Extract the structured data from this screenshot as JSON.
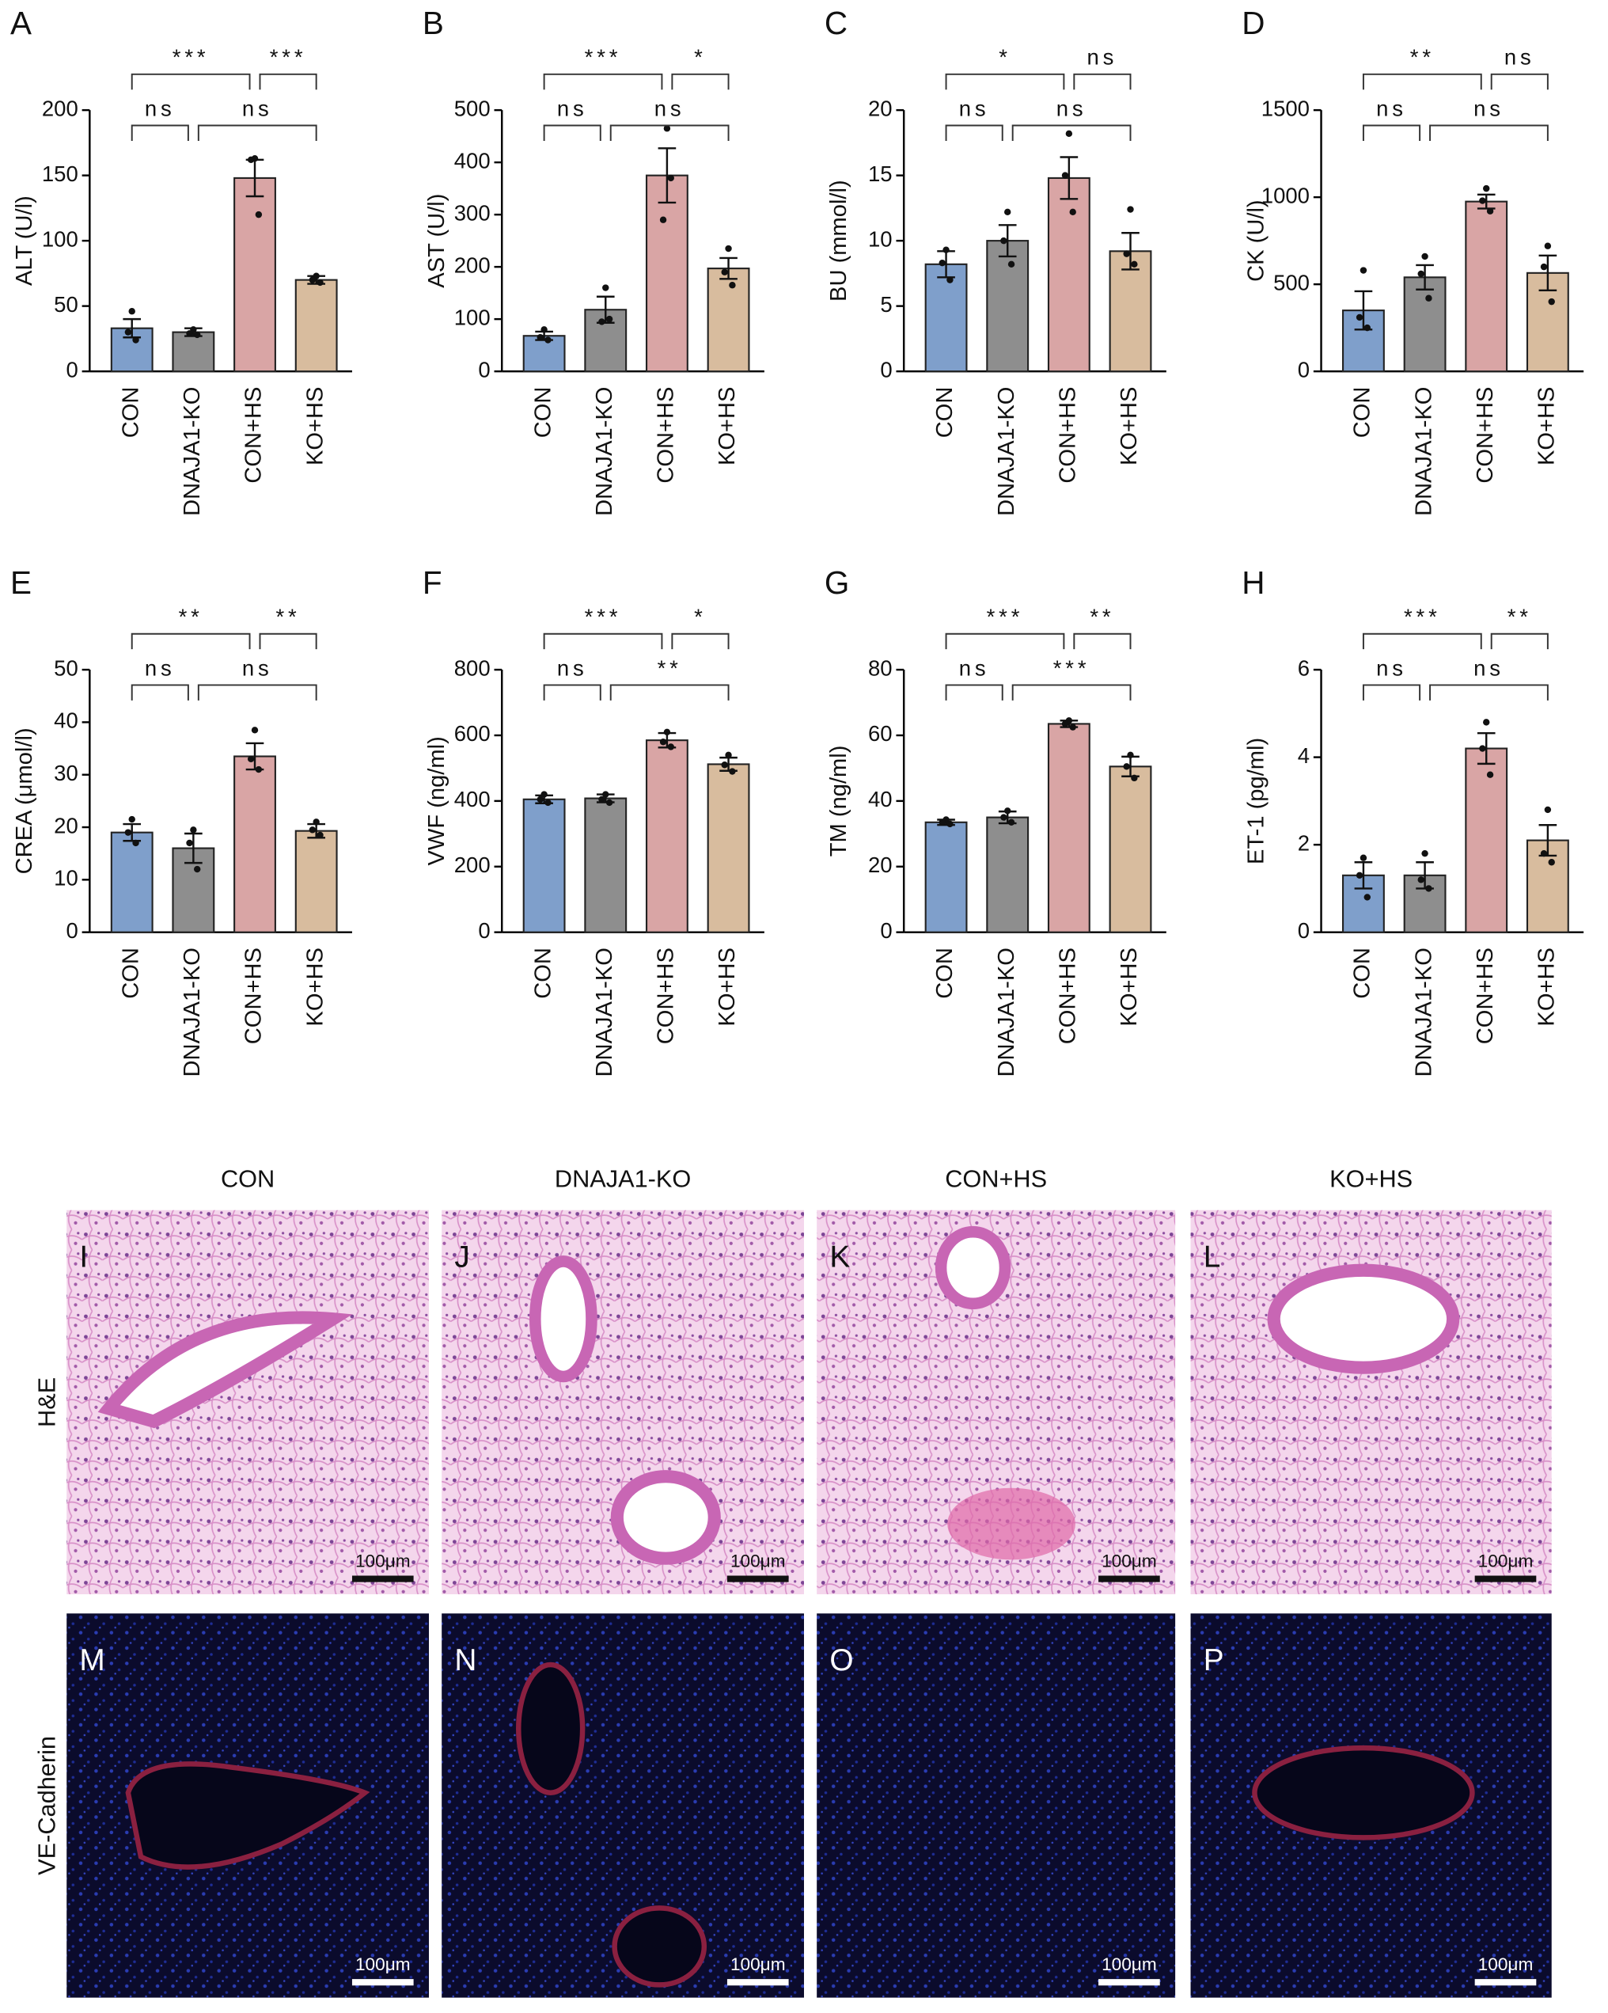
{
  "chart_data": [
    {
      "type": "bar",
      "panel": "A",
      "ylabel": "ALT (U/l)",
      "categories": [
        "CON",
        "DNAJA1-KO",
        "CON+HS",
        "KO+HS"
      ],
      "colors": [
        "#7f9fcb",
        "#8e8e8e",
        "#d9a5a5",
        "#d8bc9e"
      ],
      "values": [
        33,
        30,
        148,
        70
      ],
      "errors": [
        7,
        3,
        14,
        3
      ],
      "points": [
        [
          46,
          30,
          24
        ],
        [
          32,
          29,
          28
        ],
        [
          163,
          162,
          120
        ],
        [
          73,
          70,
          68
        ]
      ],
      "ylim": [
        0,
        200
      ],
      "yticks": [
        0,
        50,
        100,
        150,
        200
      ],
      "significance": [
        {
          "pair": [
            0,
            2
          ],
          "level": 1,
          "label": "***"
        },
        {
          "pair": [
            2,
            3
          ],
          "level": 1,
          "label": "***"
        },
        {
          "pair": [
            0,
            1
          ],
          "level": 0,
          "label": "ns"
        },
        {
          "pair": [
            1,
            3
          ],
          "level": 0,
          "label": "ns"
        }
      ]
    },
    {
      "type": "bar",
      "panel": "B",
      "ylabel": "AST (U/l)",
      "categories": [
        "CON",
        "DNAJA1-KO",
        "CON+HS",
        "KO+HS"
      ],
      "colors": [
        "#7f9fcb",
        "#8e8e8e",
        "#d9a5a5",
        "#d8bc9e"
      ],
      "values": [
        68,
        118,
        375,
        197
      ],
      "errors": [
        8,
        25,
        52,
        20
      ],
      "points": [
        [
          80,
          65,
          60
        ],
        [
          160,
          95,
          100
        ],
        [
          465,
          290,
          370
        ],
        [
          235,
          190,
          165
        ]
      ],
      "ylim": [
        0,
        500
      ],
      "yticks": [
        0,
        100,
        200,
        300,
        400,
        500
      ],
      "significance": [
        {
          "pair": [
            0,
            2
          ],
          "level": 1,
          "label": "***"
        },
        {
          "pair": [
            2,
            3
          ],
          "level": 1,
          "label": "*"
        },
        {
          "pair": [
            0,
            1
          ],
          "level": 0,
          "label": "ns"
        },
        {
          "pair": [
            1,
            3
          ],
          "level": 0,
          "label": "ns"
        }
      ]
    },
    {
      "type": "bar",
      "panel": "C",
      "ylabel": "BU (mmol/l)",
      "categories": [
        "CON",
        "DNAJA1-KO",
        "CON+HS",
        "KO+HS"
      ],
      "colors": [
        "#7f9fcb",
        "#8e8e8e",
        "#d9a5a5",
        "#d8bc9e"
      ],
      "values": [
        8.2,
        10,
        14.8,
        9.2
      ],
      "errors": [
        1,
        1.2,
        1.6,
        1.4
      ],
      "points": [
        [
          9.3,
          8.3,
          7
        ],
        [
          12.2,
          10,
          8.2
        ],
        [
          18.2,
          15,
          12.2
        ],
        [
          12.4,
          9,
          8.2
        ]
      ],
      "ylim": [
        0,
        20
      ],
      "yticks": [
        0,
        5,
        10,
        15,
        20
      ],
      "significance": [
        {
          "pair": [
            0,
            2
          ],
          "level": 1,
          "label": "*"
        },
        {
          "pair": [
            2,
            3
          ],
          "level": 1,
          "label": "ns"
        },
        {
          "pair": [
            0,
            1
          ],
          "level": 0,
          "label": "ns"
        },
        {
          "pair": [
            1,
            3
          ],
          "level": 0,
          "label": "ns"
        }
      ]
    },
    {
      "type": "bar",
      "panel": "D",
      "ylabel": "CK (U/l)",
      "categories": [
        "CON",
        "DNAJA1-KO",
        "CON+HS",
        "KO+HS"
      ],
      "colors": [
        "#7f9fcb",
        "#8e8e8e",
        "#d9a5a5",
        "#d8bc9e"
      ],
      "values": [
        350,
        540,
        975,
        565
      ],
      "errors": [
        110,
        70,
        40,
        100
      ],
      "points": [
        [
          580,
          310,
          250
        ],
        [
          660,
          560,
          420
        ],
        [
          1050,
          980,
          920
        ],
        [
          720,
          600,
          400
        ]
      ],
      "ylim": [
        0,
        1500
      ],
      "yticks": [
        0,
        500,
        1000,
        1500
      ],
      "significance": [
        {
          "pair": [
            0,
            2
          ],
          "level": 1,
          "label": "**"
        },
        {
          "pair": [
            2,
            3
          ],
          "level": 1,
          "label": "ns"
        },
        {
          "pair": [
            0,
            1
          ],
          "level": 0,
          "label": "ns"
        },
        {
          "pair": [
            1,
            3
          ],
          "level": 0,
          "label": "ns"
        }
      ]
    },
    {
      "type": "bar",
      "panel": "E",
      "ylabel": "CREA (μmol/l)",
      "categories": [
        "CON",
        "DNAJA1-KO",
        "CON+HS",
        "KO+HS"
      ],
      "colors": [
        "#7f9fcb",
        "#8e8e8e",
        "#d9a5a5",
        "#d8bc9e"
      ],
      "values": [
        19,
        16,
        33.5,
        19.3
      ],
      "errors": [
        1.6,
        2.8,
        2.5,
        1.3
      ],
      "points": [
        [
          21.5,
          19,
          17
        ],
        [
          19.5,
          17,
          12
        ],
        [
          38.5,
          33,
          31
        ],
        [
          21,
          19.5,
          18.5
        ]
      ],
      "ylim": [
        0,
        50
      ],
      "yticks": [
        0,
        10,
        20,
        30,
        40,
        50
      ],
      "significance": [
        {
          "pair": [
            0,
            2
          ],
          "level": 1,
          "label": "**"
        },
        {
          "pair": [
            2,
            3
          ],
          "level": 1,
          "label": "**"
        },
        {
          "pair": [
            0,
            1
          ],
          "level": 0,
          "label": "ns"
        },
        {
          "pair": [
            1,
            3
          ],
          "level": 0,
          "label": "ns"
        }
      ]
    },
    {
      "type": "bar",
      "panel": "F",
      "ylabel": "VWF (ng/ml)",
      "categories": [
        "CON",
        "DNAJA1-KO",
        "CON+HS",
        "KO+HS"
      ],
      "colors": [
        "#7f9fcb",
        "#8e8e8e",
        "#d9a5a5",
        "#d8bc9e"
      ],
      "values": [
        405,
        408,
        585,
        512
      ],
      "errors": [
        12,
        12,
        22,
        20
      ],
      "points": [
        [
          420,
          405,
          395
        ],
        [
          420,
          405,
          395
        ],
        [
          610,
          580,
          565
        ],
        [
          540,
          510,
          490
        ]
      ],
      "ylim": [
        0,
        800
      ],
      "yticks": [
        0,
        200,
        400,
        600,
        800
      ],
      "significance": [
        {
          "pair": [
            0,
            2
          ],
          "level": 1,
          "label": "***"
        },
        {
          "pair": [
            2,
            3
          ],
          "level": 1,
          "label": "*"
        },
        {
          "pair": [
            0,
            1
          ],
          "level": 0,
          "label": "ns"
        },
        {
          "pair": [
            1,
            3
          ],
          "level": 0,
          "label": "**"
        }
      ]
    },
    {
      "type": "bar",
      "panel": "G",
      "ylabel": "TM (ng/ml)",
      "categories": [
        "CON",
        "DNAJA1-KO",
        "CON+HS",
        "KO+HS"
      ],
      "colors": [
        "#7f9fcb",
        "#8e8e8e",
        "#d9a5a5",
        "#d8bc9e"
      ],
      "values": [
        33.5,
        35,
        63.5,
        50.5
      ],
      "errors": [
        0.8,
        1.8,
        1,
        3
      ],
      "points": [
        [
          34.3,
          33.5,
          33
        ],
        [
          37,
          35,
          33.5
        ],
        [
          64.5,
          63.5,
          62.5
        ],
        [
          54,
          50.5,
          47
        ]
      ],
      "ylim": [
        0,
        80
      ],
      "yticks": [
        0,
        20,
        40,
        60,
        80
      ],
      "significance": [
        {
          "pair": [
            0,
            2
          ],
          "level": 1,
          "label": "***"
        },
        {
          "pair": [
            2,
            3
          ],
          "level": 1,
          "label": "**"
        },
        {
          "pair": [
            0,
            1
          ],
          "level": 0,
          "label": "ns"
        },
        {
          "pair": [
            1,
            3
          ],
          "level": 0,
          "label": "***"
        }
      ]
    },
    {
      "type": "bar",
      "panel": "H",
      "ylabel": "ET-1 (pg/ml)",
      "categories": [
        "CON",
        "DNAJA1-KO",
        "CON+HS",
        "KO+HS"
      ],
      "colors": [
        "#7f9fcb",
        "#8e8e8e",
        "#d9a5a5",
        "#d8bc9e"
      ],
      "values": [
        1.3,
        1.3,
        4.2,
        2.1
      ],
      "errors": [
        0.3,
        0.3,
        0.35,
        0.35
      ],
      "points": [
        [
          1.7,
          1.3,
          0.8
        ],
        [
          1.8,
          1.2,
          1.0
        ],
        [
          4.8,
          4.2,
          3.6
        ],
        [
          2.8,
          1.8,
          1.6
        ]
      ],
      "ylim": [
        0,
        6
      ],
      "yticks": [
        0,
        2,
        4,
        6
      ],
      "significance": [
        {
          "pair": [
            0,
            2
          ],
          "level": 1,
          "label": "***"
        },
        {
          "pair": [
            2,
            3
          ],
          "level": 1,
          "label": "**"
        },
        {
          "pair": [
            0,
            1
          ],
          "level": 0,
          "label": "ns"
        },
        {
          "pair": [
            1,
            3
          ],
          "level": 0,
          "label": "ns"
        }
      ]
    }
  ],
  "micrographs": {
    "columns": [
      "CON",
      "DNAJA1-KO",
      "CON+HS",
      "KO+HS"
    ],
    "rows": [
      "H&E",
      "VE-Cadherin"
    ],
    "panels": [
      "I",
      "J",
      "K",
      "L",
      "M",
      "N",
      "O",
      "P"
    ],
    "scale_bar": "100μm"
  }
}
